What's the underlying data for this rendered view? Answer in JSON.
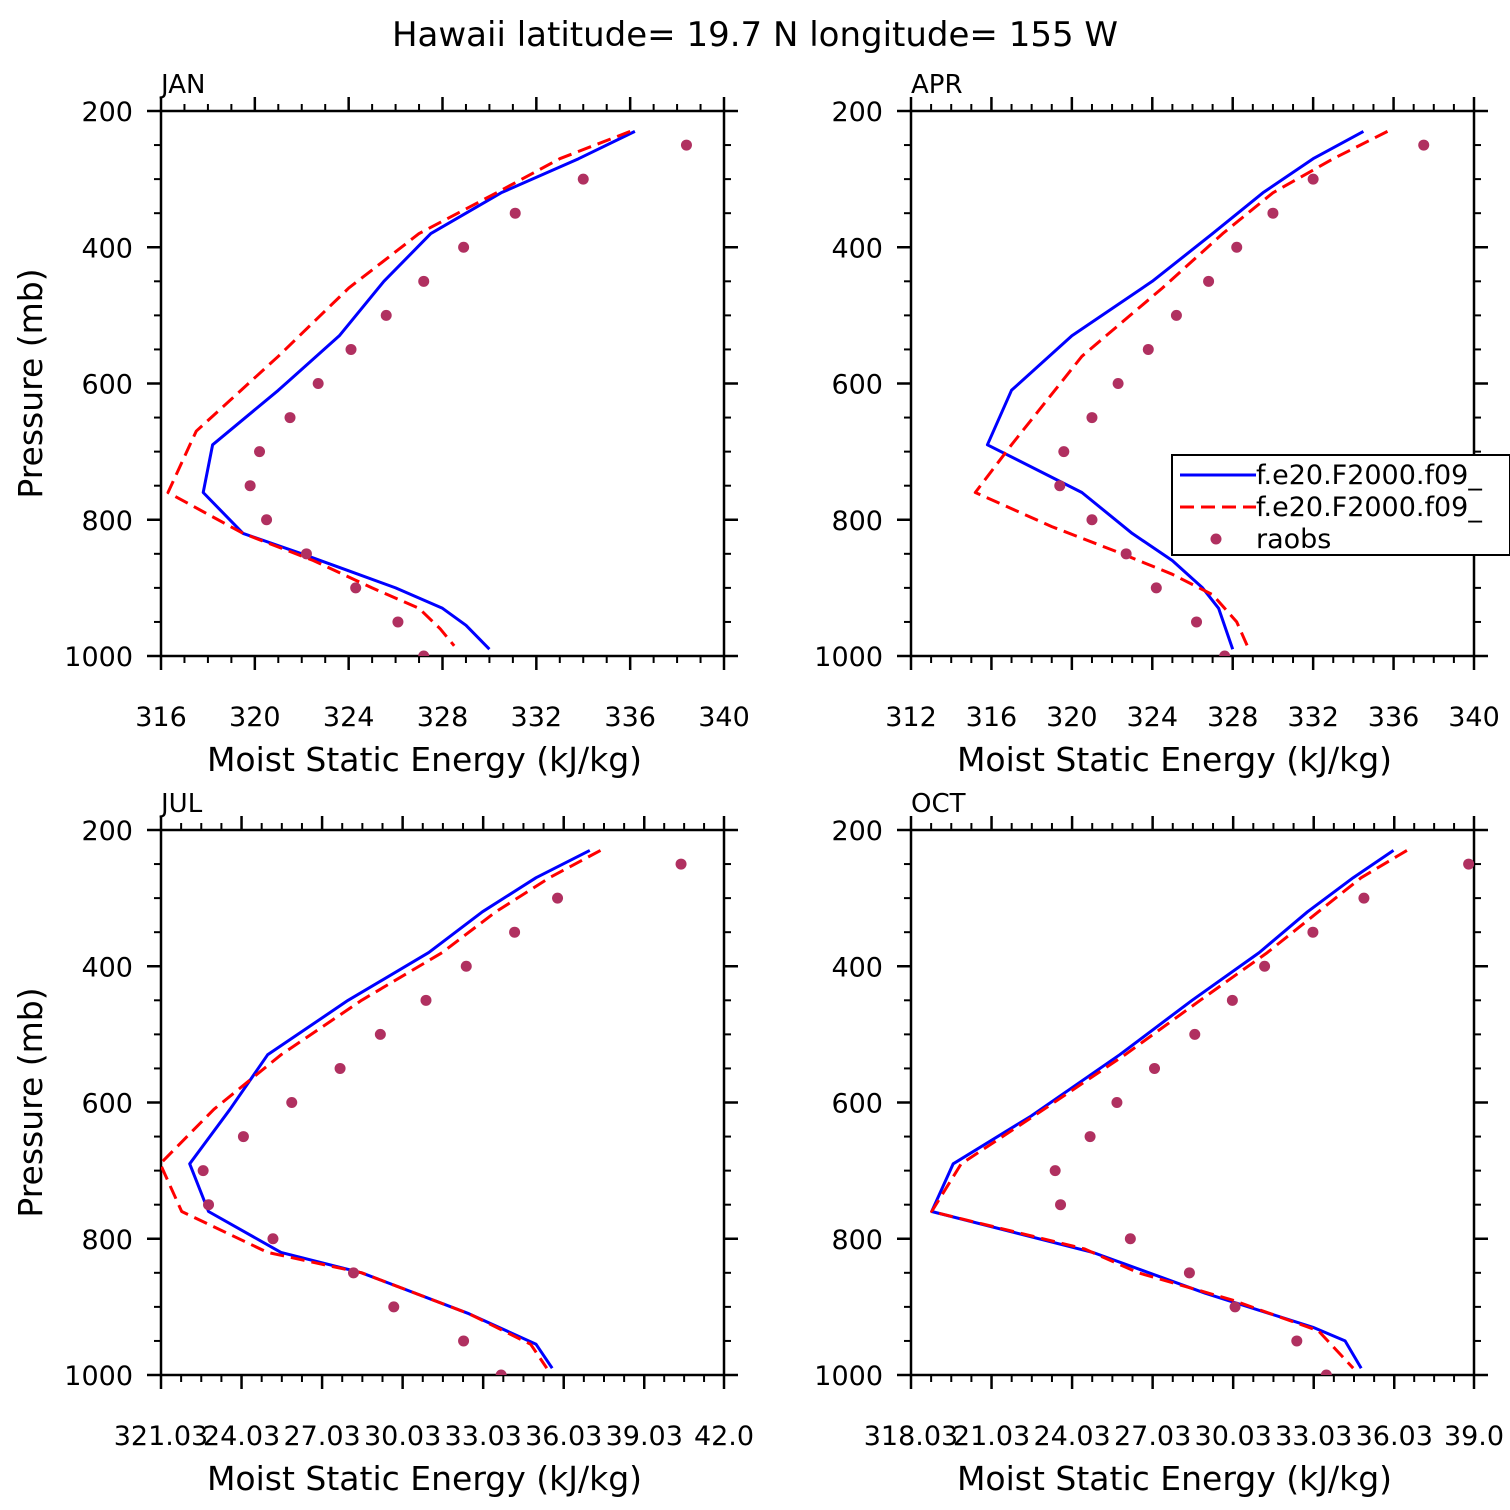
{
  "title": "Hawaii  latitude= 19.7 N longitude= 155 W",
  "chart_data": [
    {
      "type": "line",
      "panel": "JAN",
      "xlabel": "Moist Static Energy (kJ/kg)",
      "ylabel": "Pressure (mb)",
      "xlim": [
        316,
        340
      ],
      "ylim": [
        200,
        1000
      ],
      "y_inverted": true,
      "xticks": [
        "316",
        "320",
        "324",
        "328",
        "332",
        "336",
        "340"
      ],
      "xtick_values": [
        316,
        320,
        324,
        328,
        332,
        336,
        340
      ],
      "yticks": [
        "200",
        "400",
        "600",
        "800",
        "1000"
      ],
      "series": [
        {
          "name": "f.e20.F2000.f09_",
          "style": "solid",
          "color": "#0000ff",
          "x": [
            336.2,
            333.8,
            330.5,
            327.5,
            325.5,
            323.6,
            321.0,
            318.2,
            317.8,
            319.5,
            322.0,
            324.0,
            326.0,
            328.0,
            329.0,
            330.0
          ],
          "y": [
            230,
            270,
            320,
            380,
            450,
            530,
            610,
            690,
            760,
            820,
            850,
            875,
            900,
            930,
            955,
            990
          ]
        },
        {
          "name": "f.e20.F2000.f09_",
          "style": "dashed",
          "color": "#ff0000",
          "x": [
            336.0,
            333.0,
            330.3,
            327.0,
            324.0,
            321.0,
            317.5,
            316.3,
            319.5,
            322.5,
            325.0,
            327.0,
            327.9,
            328.5
          ],
          "y": [
            230,
            270,
            320,
            380,
            460,
            560,
            670,
            760,
            820,
            860,
            900,
            930,
            960,
            985
          ]
        },
        {
          "name": "raobs",
          "style": "points",
          "color": "#b03060",
          "x": [
            338.4,
            334.0,
            331.1,
            328.9,
            327.2,
            325.6,
            324.1,
            322.7,
            321.5,
            320.2,
            319.8,
            320.5,
            322.2,
            324.3,
            326.1,
            327.2
          ],
          "y": [
            250,
            300,
            350,
            400,
            450,
            500,
            550,
            600,
            650,
            700,
            750,
            800,
            850,
            900,
            950,
            1000
          ]
        }
      ]
    },
    {
      "type": "line",
      "panel": "APR",
      "xlabel": "Moist Static Energy (kJ/kg)",
      "ylabel": "",
      "xlim": [
        312,
        340
      ],
      "ylim": [
        200,
        1000
      ],
      "y_inverted": true,
      "xticks": [
        "312",
        "316",
        "320",
        "324",
        "328",
        "332",
        "336",
        "340"
      ],
      "xtick_values": [
        312,
        316,
        320,
        324,
        328,
        332,
        336,
        340
      ],
      "yticks": [
        "200",
        "400",
        "600",
        "800",
        "1000"
      ],
      "legend": {
        "placement": "right",
        "entries": [
          "f.e20.F2000.f09_",
          "f.e20.F2000.f09_",
          "raobs"
        ]
      },
      "series": [
        {
          "name": "f.e20.F2000.f09_",
          "style": "solid",
          "color": "#0000ff",
          "x": [
            334.5,
            332.0,
            329.5,
            327.0,
            324.0,
            320.0,
            317.0,
            315.8,
            320.5,
            323.0,
            325.0,
            326.5,
            327.3,
            328.0
          ],
          "y": [
            230,
            270,
            320,
            380,
            450,
            530,
            610,
            690,
            760,
            820,
            860,
            900,
            930,
            990
          ]
        },
        {
          "name": "f.e20.F2000.f09_",
          "style": "dashed",
          "color": "#ff0000",
          "x": [
            335.7,
            333.0,
            330.0,
            327.5,
            324.5,
            320.5,
            317.0,
            315.2,
            319.0,
            322.5,
            325.0,
            327.0,
            328.2,
            328.8
          ],
          "y": [
            230,
            270,
            320,
            380,
            460,
            560,
            690,
            760,
            810,
            850,
            880,
            910,
            950,
            990
          ]
        },
        {
          "name": "raobs",
          "style": "points",
          "color": "#b03060",
          "x": [
            337.5,
            332.0,
            330.0,
            328.2,
            326.8,
            325.2,
            323.8,
            322.3,
            321.0,
            319.6,
            319.4,
            321.0,
            322.7,
            324.2,
            326.2,
            327.6
          ],
          "y": [
            250,
            300,
            350,
            400,
            450,
            500,
            550,
            600,
            650,
            700,
            750,
            800,
            850,
            900,
            950,
            1000
          ]
        }
      ]
    },
    {
      "type": "line",
      "panel": "JUL",
      "xlabel": "Moist Static Energy (kJ/kg)",
      "ylabel": "Pressure (mb)",
      "xlim": [
        321.03,
        342.0
      ],
      "ylim": [
        200,
        1000
      ],
      "y_inverted": true,
      "xticks": [
        "321.03",
        "24.03",
        "27.03",
        "30.03",
        "33.03",
        "36.03",
        "39.03",
        "42.0"
      ],
      "xtick_values": [
        321.03,
        324.03,
        327.03,
        330.03,
        333.03,
        336.03,
        339.03,
        342.0
      ],
      "yticks": [
        "200",
        "400",
        "600",
        "800",
        "1000"
      ],
      "series": [
        {
          "name": "f.e20.F2000.f09_",
          "style": "solid",
          "color": "#0000ff",
          "x": [
            337.0,
            335.0,
            333.0,
            331.0,
            328.0,
            325.0,
            323.6,
            322.1,
            322.8,
            325.5,
            328.5,
            332.5,
            335.0,
            335.6
          ],
          "y": [
            230,
            270,
            320,
            380,
            450,
            530,
            610,
            690,
            760,
            820,
            850,
            910,
            955,
            990
          ]
        },
        {
          "name": "f.e20.F2000.f09_",
          "style": "dashed",
          "color": "#ff0000",
          "x": [
            337.4,
            335.5,
            333.5,
            331.5,
            328.5,
            325.5,
            323.0,
            321.0,
            321.8,
            325.0,
            328.5,
            332.5,
            334.8,
            335.4
          ],
          "y": [
            230,
            270,
            320,
            380,
            450,
            530,
            610,
            690,
            760,
            820,
            850,
            910,
            955,
            990
          ]
        },
        {
          "name": "raobs",
          "style": "points",
          "color": "#b03060",
          "x": [
            340.4,
            335.8,
            334.2,
            332.4,
            330.9,
            329.2,
            327.7,
            325.9,
            324.1,
            322.6,
            322.8,
            325.2,
            328.2,
            329.7,
            332.3,
            333.7
          ],
          "y": [
            250,
            300,
            350,
            400,
            450,
            500,
            550,
            600,
            650,
            700,
            750,
            800,
            850,
            900,
            950,
            1000
          ]
        }
      ]
    },
    {
      "type": "line",
      "panel": "OCT",
      "xlabel": "Moist Static Energy (kJ/kg)",
      "ylabel": "",
      "xlim": [
        318.03,
        339.0
      ],
      "ylim": [
        200,
        1000
      ],
      "y_inverted": true,
      "xticks": [
        "318.03",
        "21.03",
        "24.03",
        "27.03",
        "30.03",
        "33.03",
        "36.03",
        "39.0"
      ],
      "xtick_values": [
        318.03,
        321.03,
        324.03,
        327.03,
        330.03,
        333.03,
        336.03,
        339.0
      ],
      "yticks": [
        "200",
        "400",
        "600",
        "800",
        "1000"
      ],
      "series": [
        {
          "name": "f.e20.F2000.f09_",
          "style": "solid",
          "color": "#0000ff",
          "x": [
            336.0,
            334.5,
            332.8,
            331.0,
            328.5,
            325.8,
            322.5,
            319.6,
            318.8,
            324.8,
            329.0,
            333.0,
            334.2,
            334.8
          ],
          "y": [
            230,
            270,
            320,
            380,
            450,
            530,
            620,
            690,
            760,
            820,
            880,
            930,
            950,
            990
          ]
        },
        {
          "name": "f.e20.F2000.f09_",
          "style": "dashed",
          "color": "#ff0000",
          "x": [
            336.5,
            334.8,
            333.2,
            331.3,
            328.8,
            326.0,
            322.6,
            319.9,
            318.8,
            324.5,
            326.5,
            330.0,
            333.2,
            334.5
          ],
          "y": [
            230,
            270,
            320,
            380,
            450,
            530,
            620,
            690,
            760,
            815,
            850,
            890,
            935,
            990
          ]
        },
        {
          "name": "raobs",
          "style": "points",
          "color": "#b03060",
          "x": [
            338.8,
            334.9,
            333.0,
            331.2,
            330.0,
            328.6,
            327.1,
            325.7,
            324.7,
            323.4,
            323.6,
            326.2,
            328.4,
            330.1,
            332.4,
            333.5
          ],
          "y": [
            250,
            300,
            350,
            400,
            450,
            500,
            550,
            600,
            650,
            700,
            750,
            800,
            850,
            900,
            950,
            1000
          ]
        }
      ]
    }
  ]
}
